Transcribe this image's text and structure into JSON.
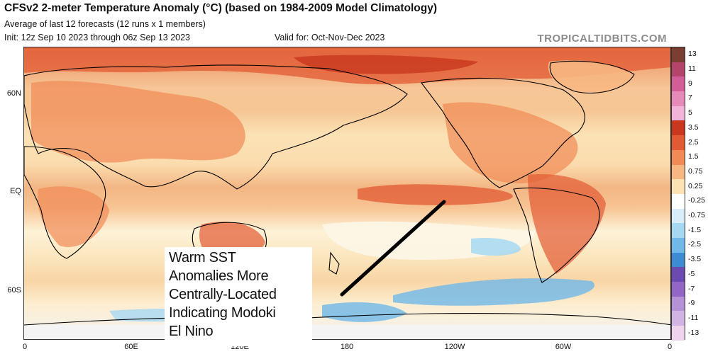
{
  "header": {
    "title": "CFSv2 2-meter Temperature Anomaly (°C) (based on 1984-2009 Model Climatology)",
    "subtitle": "Average of last 12 forecasts (12 runs x 1 members)",
    "init": "Init: 12z Sep 10 2023 through 06z Sep 13 2023",
    "valid": "Valid for: Oct-Nov-Dec 2023",
    "credit": "TROPICALTIDBITS.COM"
  },
  "axes": {
    "lat_labels": [
      "60N",
      "EQ",
      "60S"
    ],
    "lon_labels": [
      "0",
      "60E",
      "120E",
      "180",
      "120W",
      "60W",
      "0"
    ]
  },
  "colorbar": {
    "labels": [
      "13",
      "11",
      "9",
      "7",
      "5",
      "3.5",
      "2.5",
      "1.5",
      "0.75",
      "0.25",
      "-0.25",
      "-0.75",
      "-1.5",
      "-2.5",
      "-3.5",
      "-5",
      "-7",
      "-9",
      "-11",
      "-13"
    ],
    "colors": [
      "#7a3e33",
      "#b5446a",
      "#d35d96",
      "#e58ab9",
      "#f2b3d8",
      "#c8371e",
      "#e25a33",
      "#f18a55",
      "#f7b782",
      "#fde2b4",
      "#ffffff",
      "#d7eefa",
      "#a6d8f2",
      "#6fb8e8",
      "#3d8bd2",
      "#6b4ab2",
      "#9266c4",
      "#b591d6",
      "#d1b4e4",
      "#efd3ec"
    ]
  },
  "annotation": {
    "lines": [
      "Warm SST",
      "Anomalies More",
      "Centrally-Located",
      "Indicating Modoki",
      "El Nino"
    ]
  },
  "colors": {
    "arrow": "#000000",
    "land_outline": "#000000",
    "credit": "#8c8c8c"
  }
}
